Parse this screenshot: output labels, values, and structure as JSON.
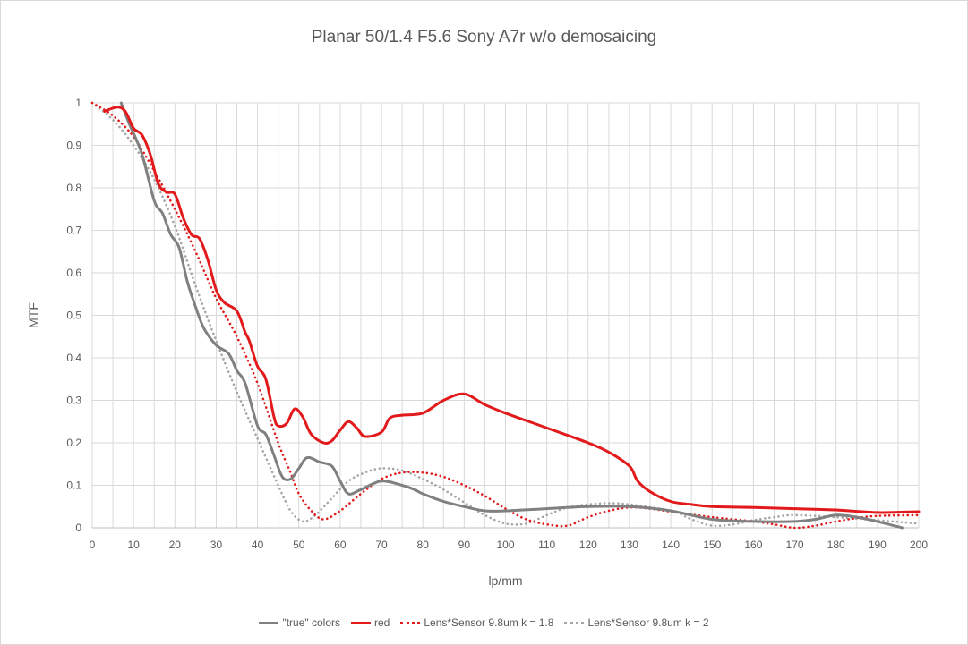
{
  "chart_data": {
    "type": "line",
    "title": "Planar 50/1.4 F5.6 Sony A7r w/o demosaicing",
    "xlabel": "lp/mm",
    "ylabel": "MTF",
    "xlim": [
      0,
      200
    ],
    "ylim": [
      0,
      1
    ],
    "x_ticks": [
      "0",
      "10",
      "20",
      "30",
      "40",
      "50",
      "60",
      "70",
      "80",
      "90",
      "100",
      "110",
      "120",
      "130",
      "140",
      "150",
      "160",
      "170",
      "180",
      "190",
      "200"
    ],
    "y_ticks": [
      "0",
      "0.1",
      "0.2",
      "0.3",
      "0.4",
      "0.5",
      "0.6",
      "0.7",
      "0.8",
      "0.9",
      "1"
    ],
    "grid": "vertical lines every 5 lp/mm, horizontal lines every 0.1",
    "legend_position": "bottom",
    "series": [
      {
        "name": "\"true\" colors",
        "color": "#808080",
        "style": "solid",
        "points": [
          [
            7,
            1.0
          ],
          [
            9,
            0.95
          ],
          [
            12,
            0.88
          ],
          [
            15,
            0.77
          ],
          [
            17,
            0.74
          ],
          [
            19,
            0.69
          ],
          [
            21,
            0.66
          ],
          [
            23,
            0.58
          ],
          [
            25,
            0.52
          ],
          [
            27,
            0.47
          ],
          [
            30,
            0.43
          ],
          [
            33,
            0.41
          ],
          [
            35,
            0.37
          ],
          [
            37,
            0.34
          ],
          [
            40,
            0.24
          ],
          [
            42,
            0.22
          ],
          [
            44,
            0.17
          ],
          [
            46,
            0.12
          ],
          [
            48,
            0.115
          ],
          [
            50,
            0.14
          ],
          [
            52,
            0.165
          ],
          [
            55,
            0.155
          ],
          [
            58,
            0.145
          ],
          [
            60,
            0.11
          ],
          [
            62,
            0.08
          ],
          [
            65,
            0.09
          ],
          [
            70,
            0.11
          ],
          [
            75,
            0.1
          ],
          [
            78,
            0.09
          ],
          [
            80,
            0.08
          ],
          [
            85,
            0.062
          ],
          [
            90,
            0.05
          ],
          [
            95,
            0.04
          ],
          [
            100,
            0.04
          ],
          [
            110,
            0.045
          ],
          [
            120,
            0.05
          ],
          [
            130,
            0.05
          ],
          [
            140,
            0.04
          ],
          [
            150,
            0.02
          ],
          [
            160,
            0.015
          ],
          [
            170,
            0.015
          ],
          [
            175,
            0.02
          ],
          [
            180,
            0.03
          ],
          [
            185,
            0.025
          ],
          [
            190,
            0.015
          ],
          [
            196,
            0.0
          ]
        ]
      },
      {
        "name": "red",
        "color": "#e31a1c",
        "style": "solid",
        "points": [
          [
            3,
            0.98
          ],
          [
            6,
            0.99
          ],
          [
            8,
            0.98
          ],
          [
            10,
            0.94
          ],
          [
            12,
            0.925
          ],
          [
            14,
            0.88
          ],
          [
            16,
            0.81
          ],
          [
            18,
            0.79
          ],
          [
            20,
            0.785
          ],
          [
            22,
            0.73
          ],
          [
            24,
            0.69
          ],
          [
            26,
            0.68
          ],
          [
            28,
            0.63
          ],
          [
            30,
            0.56
          ],
          [
            32,
            0.53
          ],
          [
            35,
            0.51
          ],
          [
            37,
            0.46
          ],
          [
            38,
            0.44
          ],
          [
            40,
            0.38
          ],
          [
            42,
            0.35
          ],
          [
            44,
            0.26
          ],
          [
            45,
            0.24
          ],
          [
            47,
            0.245
          ],
          [
            49,
            0.28
          ],
          [
            51,
            0.26
          ],
          [
            53,
            0.22
          ],
          [
            56,
            0.2
          ],
          [
            58,
            0.205
          ],
          [
            60,
            0.23
          ],
          [
            62,
            0.25
          ],
          [
            64,
            0.235
          ],
          [
            66,
            0.215
          ],
          [
            70,
            0.225
          ],
          [
            72,
            0.258
          ],
          [
            75,
            0.265
          ],
          [
            80,
            0.27
          ],
          [
            85,
            0.3
          ],
          [
            90,
            0.315
          ],
          [
            95,
            0.29
          ],
          [
            100,
            0.27
          ],
          [
            110,
            0.235
          ],
          [
            120,
            0.2
          ],
          [
            125,
            0.178
          ],
          [
            130,
            0.145
          ],
          [
            132,
            0.11
          ],
          [
            135,
            0.085
          ],
          [
            140,
            0.062
          ],
          [
            145,
            0.055
          ],
          [
            150,
            0.05
          ],
          [
            160,
            0.048
          ],
          [
            170,
            0.045
          ],
          [
            180,
            0.042
          ],
          [
            190,
            0.036
          ],
          [
            200,
            0.038
          ]
        ]
      },
      {
        "name": "Lens*Sensor 9.8um k = 1.8",
        "color": "#e31a1c",
        "style": "dotted",
        "points": [
          [
            0,
            1.0
          ],
          [
            5,
            0.97
          ],
          [
            10,
            0.92
          ],
          [
            15,
            0.84
          ],
          [
            20,
            0.75
          ],
          [
            25,
            0.65
          ],
          [
            30,
            0.54
          ],
          [
            35,
            0.45
          ],
          [
            40,
            0.34
          ],
          [
            45,
            0.2
          ],
          [
            48,
            0.13
          ],
          [
            50,
            0.08
          ],
          [
            53,
            0.04
          ],
          [
            56,
            0.02
          ],
          [
            60,
            0.04
          ],
          [
            65,
            0.08
          ],
          [
            70,
            0.115
          ],
          [
            75,
            0.13
          ],
          [
            80,
            0.13
          ],
          [
            85,
            0.12
          ],
          [
            90,
            0.1
          ],
          [
            95,
            0.075
          ],
          [
            100,
            0.045
          ],
          [
            105,
            0.02
          ],
          [
            110,
            0.008
          ],
          [
            115,
            0.005
          ],
          [
            120,
            0.025
          ],
          [
            125,
            0.04
          ],
          [
            130,
            0.048
          ],
          [
            135,
            0.045
          ],
          [
            140,
            0.038
          ],
          [
            150,
            0.025
          ],
          [
            160,
            0.015
          ],
          [
            165,
            0.008
          ],
          [
            170,
            0.0
          ],
          [
            175,
            0.005
          ],
          [
            180,
            0.015
          ],
          [
            185,
            0.023
          ],
          [
            190,
            0.028
          ],
          [
            200,
            0.03
          ]
        ]
      },
      {
        "name": "Lens*Sensor 9.8um k = 2",
        "color": "#a6a6a6",
        "style": "dotted",
        "points": [
          [
            0,
            1.0
          ],
          [
            5,
            0.96
          ],
          [
            10,
            0.9
          ],
          [
            15,
            0.82
          ],
          [
            20,
            0.71
          ],
          [
            25,
            0.57
          ],
          [
            30,
            0.44
          ],
          [
            35,
            0.32
          ],
          [
            40,
            0.21
          ],
          [
            45,
            0.1
          ],
          [
            48,
            0.04
          ],
          [
            51,
            0.015
          ],
          [
            54,
            0.03
          ],
          [
            58,
            0.07
          ],
          [
            62,
            0.11
          ],
          [
            66,
            0.13
          ],
          [
            70,
            0.14
          ],
          [
            75,
            0.135
          ],
          [
            80,
            0.115
          ],
          [
            85,
            0.09
          ],
          [
            90,
            0.06
          ],
          [
            95,
            0.03
          ],
          [
            100,
            0.01
          ],
          [
            105,
            0.01
          ],
          [
            110,
            0.03
          ],
          [
            115,
            0.048
          ],
          [
            120,
            0.055
          ],
          [
            125,
            0.058
          ],
          [
            130,
            0.055
          ],
          [
            140,
            0.04
          ],
          [
            145,
            0.02
          ],
          [
            150,
            0.005
          ],
          [
            155,
            0.008
          ],
          [
            160,
            0.018
          ],
          [
            165,
            0.025
          ],
          [
            170,
            0.03
          ],
          [
            180,
            0.025
          ],
          [
            190,
            0.018
          ],
          [
            200,
            0.01
          ]
        ]
      }
    ]
  }
}
